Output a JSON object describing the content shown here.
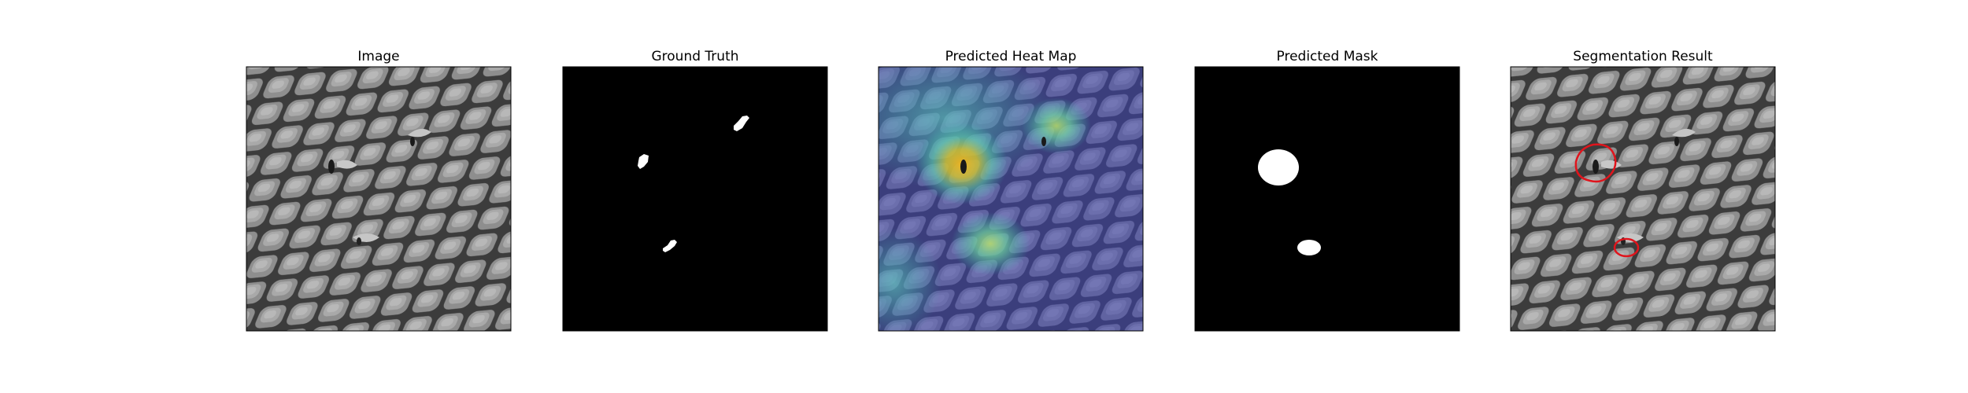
{
  "panels": [
    {
      "id": "image",
      "title": "Image"
    },
    {
      "id": "ground-truth",
      "title": "Ground Truth"
    },
    {
      "id": "heatmap",
      "title": "Predicted Heat Map"
    },
    {
      "id": "mask",
      "title": "Predicted Mask"
    },
    {
      "id": "segmentation",
      "title": "Segmentation Result"
    }
  ],
  "colors": {
    "background": "#ffffff",
    "mesh_light": "#9a9a9a",
    "mesh_dark": "#3a3a3a",
    "mask_foreground": "#ffffff",
    "mask_background": "#000000",
    "heat_low": "#3b3fb0",
    "heat_mid": "#3ec4b4",
    "heat_high": "#f2b41c",
    "contour": "#e0141c"
  }
}
